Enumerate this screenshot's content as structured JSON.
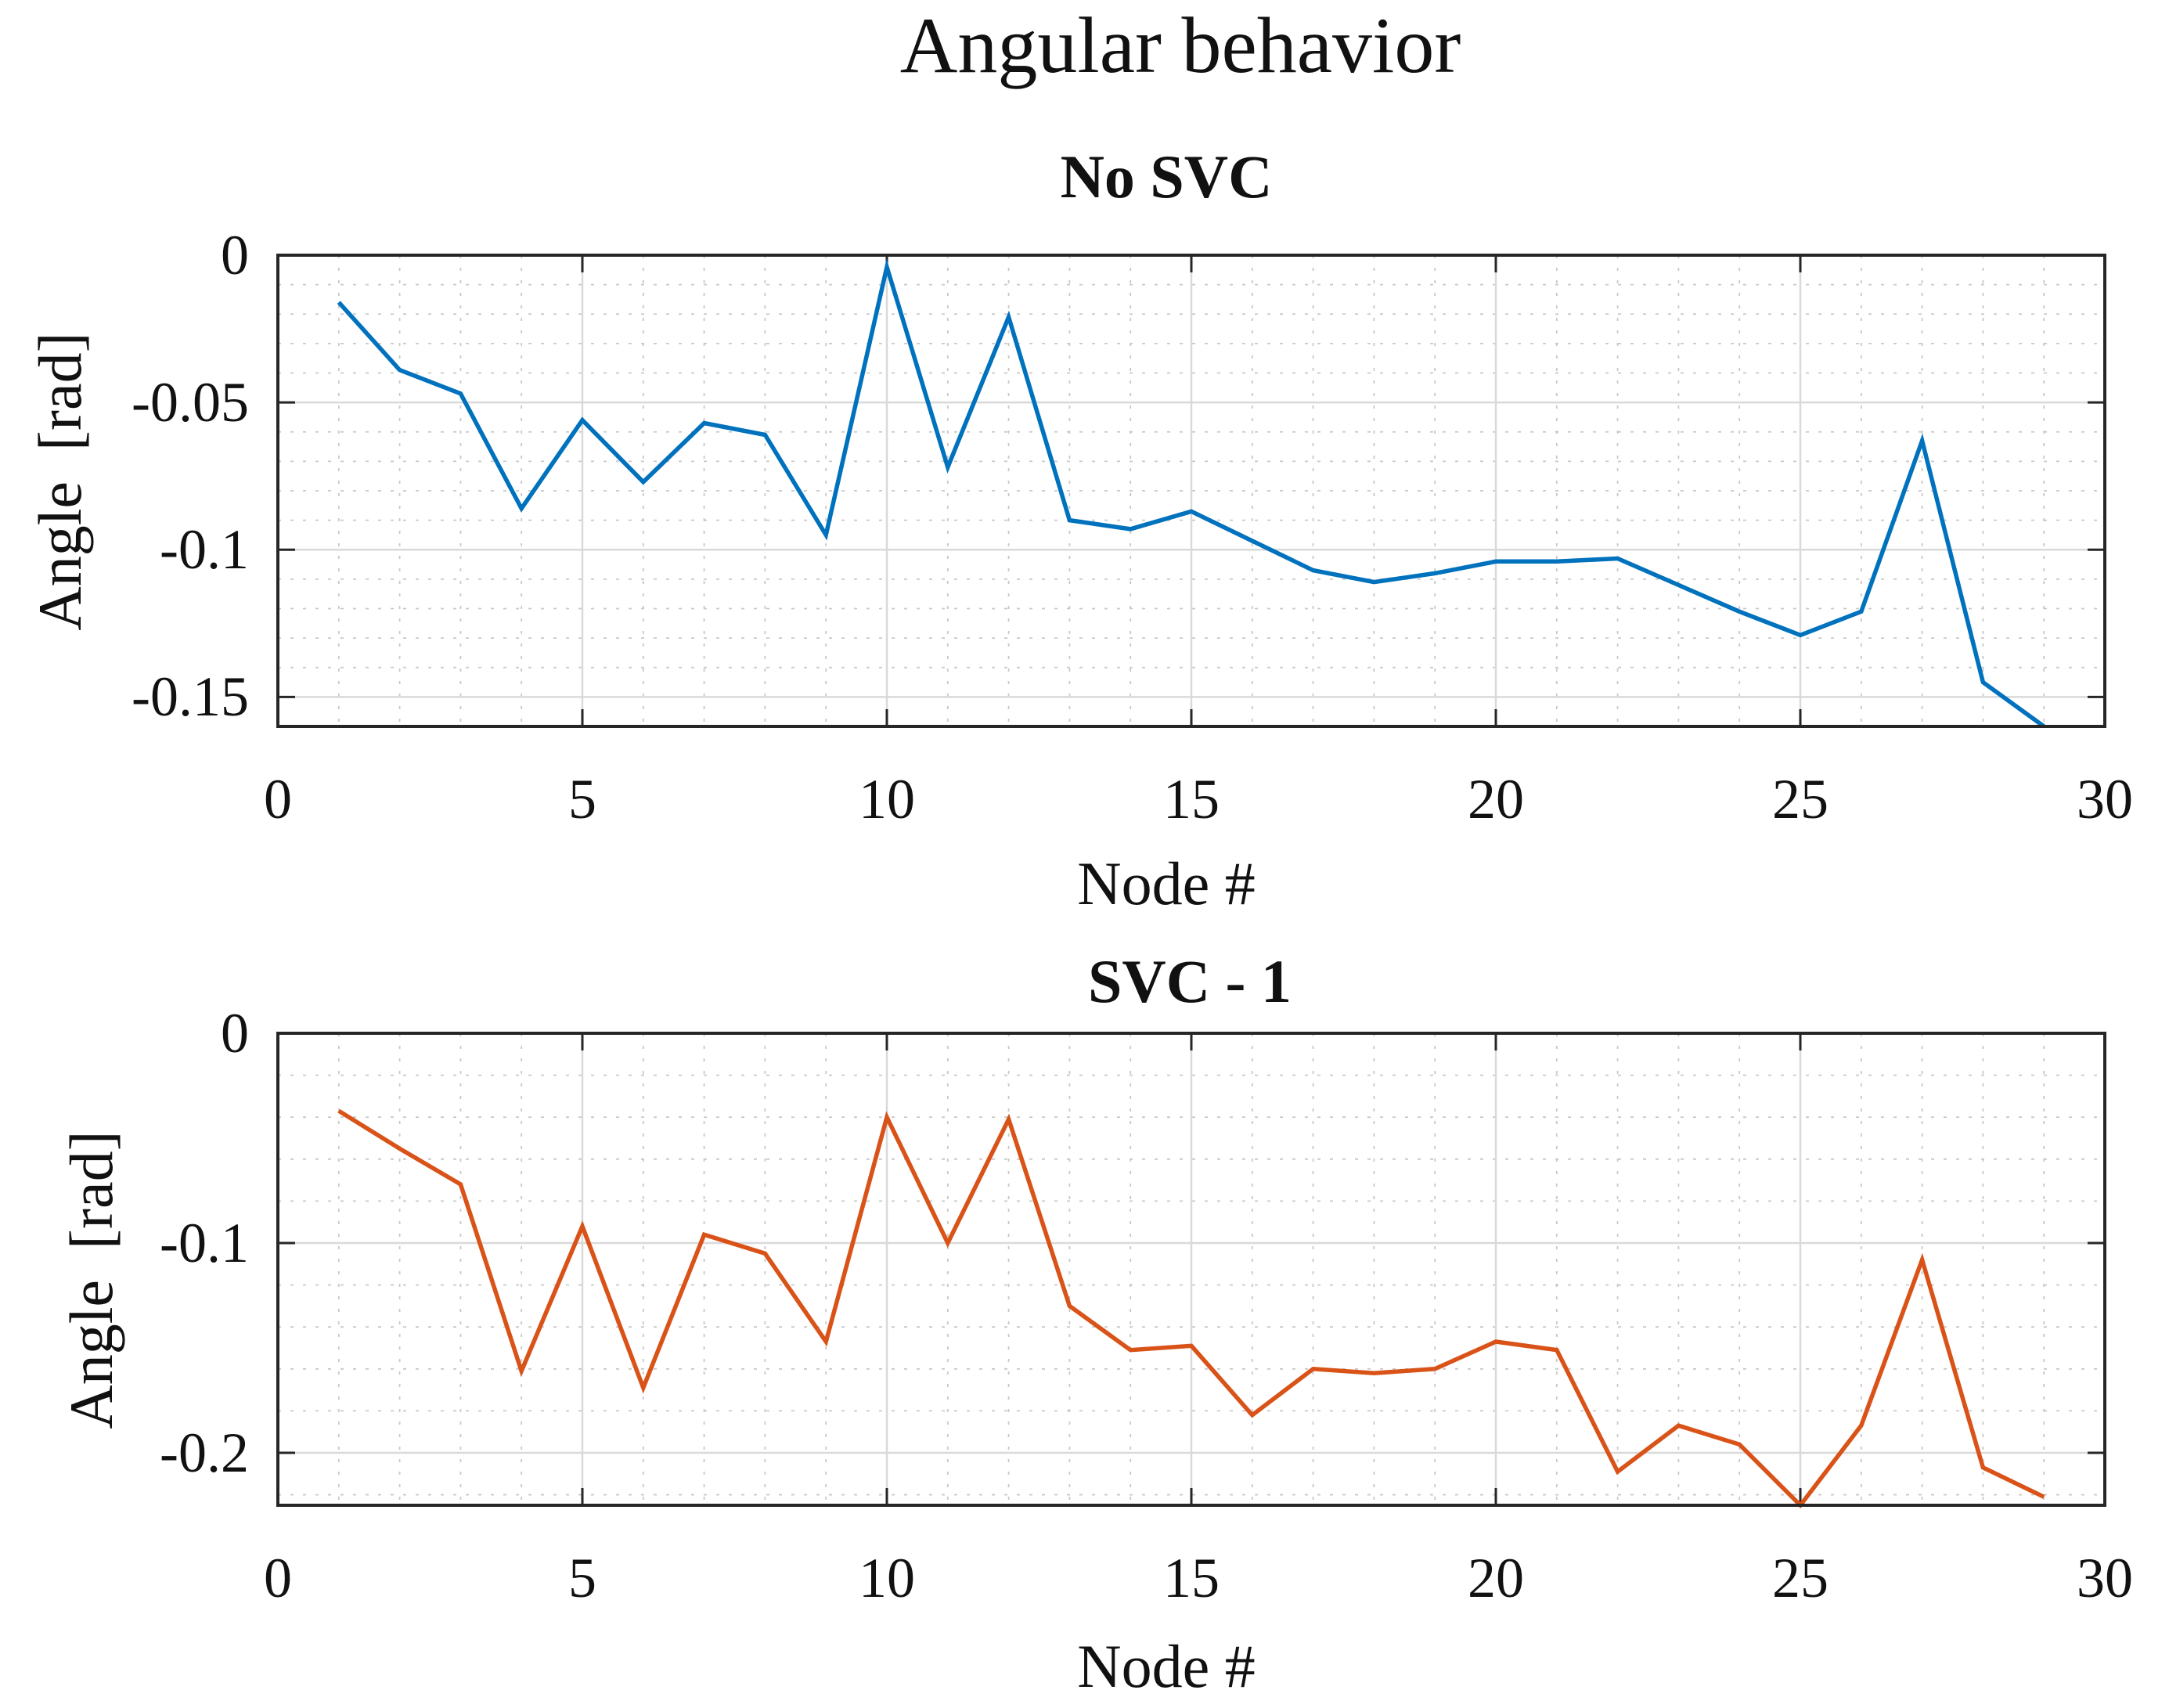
{
  "figure_title": "Angular behavior",
  "colors": {
    "series1": "#0072BD",
    "series2": "#D95319"
  },
  "chart_data": [
    {
      "type": "line",
      "title": "No SVC",
      "xlabel": "Node #",
      "ylabel": "Angle  [rad]",
      "xlim": [
        0,
        30
      ],
      "ylim": [
        -0.16,
        0
      ],
      "xticks": [
        0,
        5,
        10,
        15,
        20,
        25,
        30
      ],
      "xtick_labels": [
        "0",
        "5",
        "10",
        "15",
        "20",
        "25",
        "30"
      ],
      "yticks": [
        0,
        -0.05,
        -0.1,
        -0.15
      ],
      "ytick_labels": [
        "0",
        "-0.05",
        "-0.1",
        "-0.15"
      ],
      "grid": true,
      "minor_grid": true,
      "series": [
        {
          "name": "No SVC",
          "color": "#0072BD",
          "x": [
            1,
            2,
            3,
            4,
            5,
            6,
            7,
            8,
            9,
            10,
            11,
            12,
            13,
            14,
            15,
            16,
            17,
            18,
            19,
            20,
            21,
            22,
            23,
            24,
            25,
            26,
            27,
            28,
            29
          ],
          "y": [
            -0.016,
            -0.039,
            -0.047,
            -0.086,
            -0.056,
            -0.077,
            -0.057,
            -0.061,
            -0.095,
            -0.004,
            -0.072,
            -0.021,
            -0.09,
            -0.093,
            -0.087,
            -0.097,
            -0.107,
            -0.111,
            -0.108,
            -0.104,
            -0.104,
            -0.103,
            -0.112,
            -0.121,
            -0.129,
            -0.121,
            -0.063,
            -0.145,
            -0.16
          ]
        }
      ]
    },
    {
      "type": "line",
      "title": "SVC - 1",
      "xlabel": "Node #",
      "ylabel": "Angle  [rad]",
      "xlim": [
        0,
        30
      ],
      "ylim": [
        -0.225,
        0
      ],
      "xticks": [
        0,
        5,
        10,
        15,
        20,
        25,
        30
      ],
      "xtick_labels": [
        "0",
        "5",
        "10",
        "15",
        "20",
        "25",
        "30"
      ],
      "yticks": [
        0,
        -0.1,
        -0.2
      ],
      "ytick_labels": [
        "0",
        "-0.1",
        "-0.2"
      ],
      "grid": true,
      "minor_grid": true,
      "series": [
        {
          "name": "SVC - 1",
          "color": "#D95319",
          "x": [
            1,
            2,
            3,
            4,
            5,
            6,
            7,
            8,
            9,
            10,
            11,
            12,
            13,
            14,
            15,
            16,
            17,
            18,
            19,
            20,
            21,
            22,
            23,
            24,
            25,
            26,
            27,
            28,
            29
          ],
          "y": [
            -0.037,
            -0.055,
            -0.072,
            -0.161,
            -0.092,
            -0.169,
            -0.096,
            -0.105,
            -0.147,
            -0.04,
            -0.1,
            -0.041,
            -0.13,
            -0.151,
            -0.149,
            -0.182,
            -0.16,
            -0.162,
            -0.16,
            -0.147,
            -0.151,
            -0.209,
            -0.187,
            -0.196,
            -0.225,
            -0.187,
            -0.108,
            -0.207,
            -0.221
          ]
        }
      ]
    }
  ]
}
